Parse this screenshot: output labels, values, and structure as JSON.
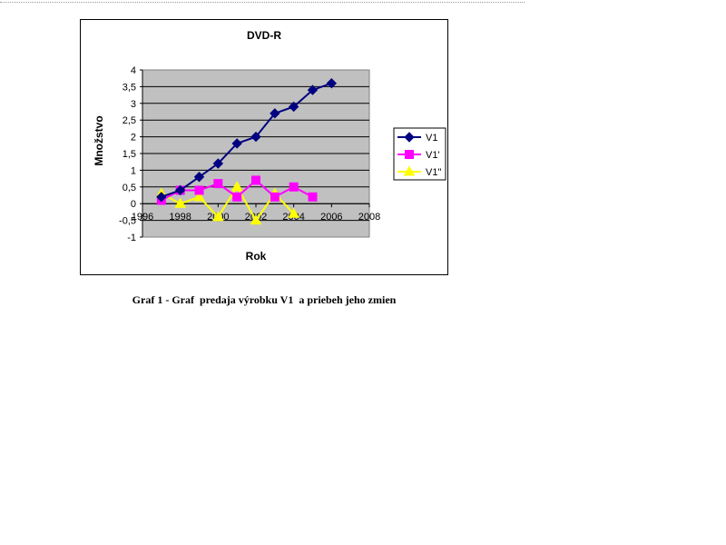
{
  "chart_data": {
    "type": "line",
    "title": "DVD-R",
    "xlabel": "Rok",
    "ylabel": "Množstvo",
    "xlim": [
      1996,
      2008
    ],
    "ylim": [
      -1,
      4
    ],
    "xticks": [
      1996,
      1998,
      2000,
      2002,
      2004,
      2006,
      2008
    ],
    "yticks": [
      -1,
      -0.5,
      0,
      0.5,
      1,
      1.5,
      2,
      2.5,
      3,
      3.5,
      4
    ],
    "ytick_labels": [
      "-1",
      "-0,5",
      "0",
      "0,5",
      "1",
      "1,5",
      "2",
      "2,5",
      "3",
      "3,5",
      "4"
    ],
    "grid": true,
    "legend_position": "right",
    "series": [
      {
        "name": "V1",
        "color": "#000080",
        "marker": "diamond",
        "x": [
          1997,
          1998,
          1999,
          2000,
          2001,
          2002,
          2003,
          2004,
          2005,
          2006
        ],
        "y": [
          0.2,
          0.4,
          0.8,
          1.2,
          1.8,
          2.0,
          2.7,
          2.9,
          3.4,
          3.6
        ]
      },
      {
        "name": "V1'",
        "color": "#ff00ff",
        "marker": "square",
        "x": [
          1997,
          1998,
          1999,
          2000,
          2001,
          2002,
          2003,
          2004,
          2005
        ],
        "y": [
          0.1,
          0.4,
          0.4,
          0.6,
          0.2,
          0.7,
          0.2,
          0.5,
          0.2
        ]
      },
      {
        "name": "V1\"",
        "color": "#ffff00",
        "marker": "triangle",
        "x": [
          1997,
          1998,
          1999,
          2000,
          2001,
          2002,
          2003,
          2004
        ],
        "y": [
          0.3,
          0.0,
          0.2,
          -0.4,
          0.5,
          -0.5,
          0.3,
          -0.3
        ]
      }
    ]
  },
  "caption": "Graf 1 - Graf  predaja výrobku V1  a priebeh jeho zmien"
}
